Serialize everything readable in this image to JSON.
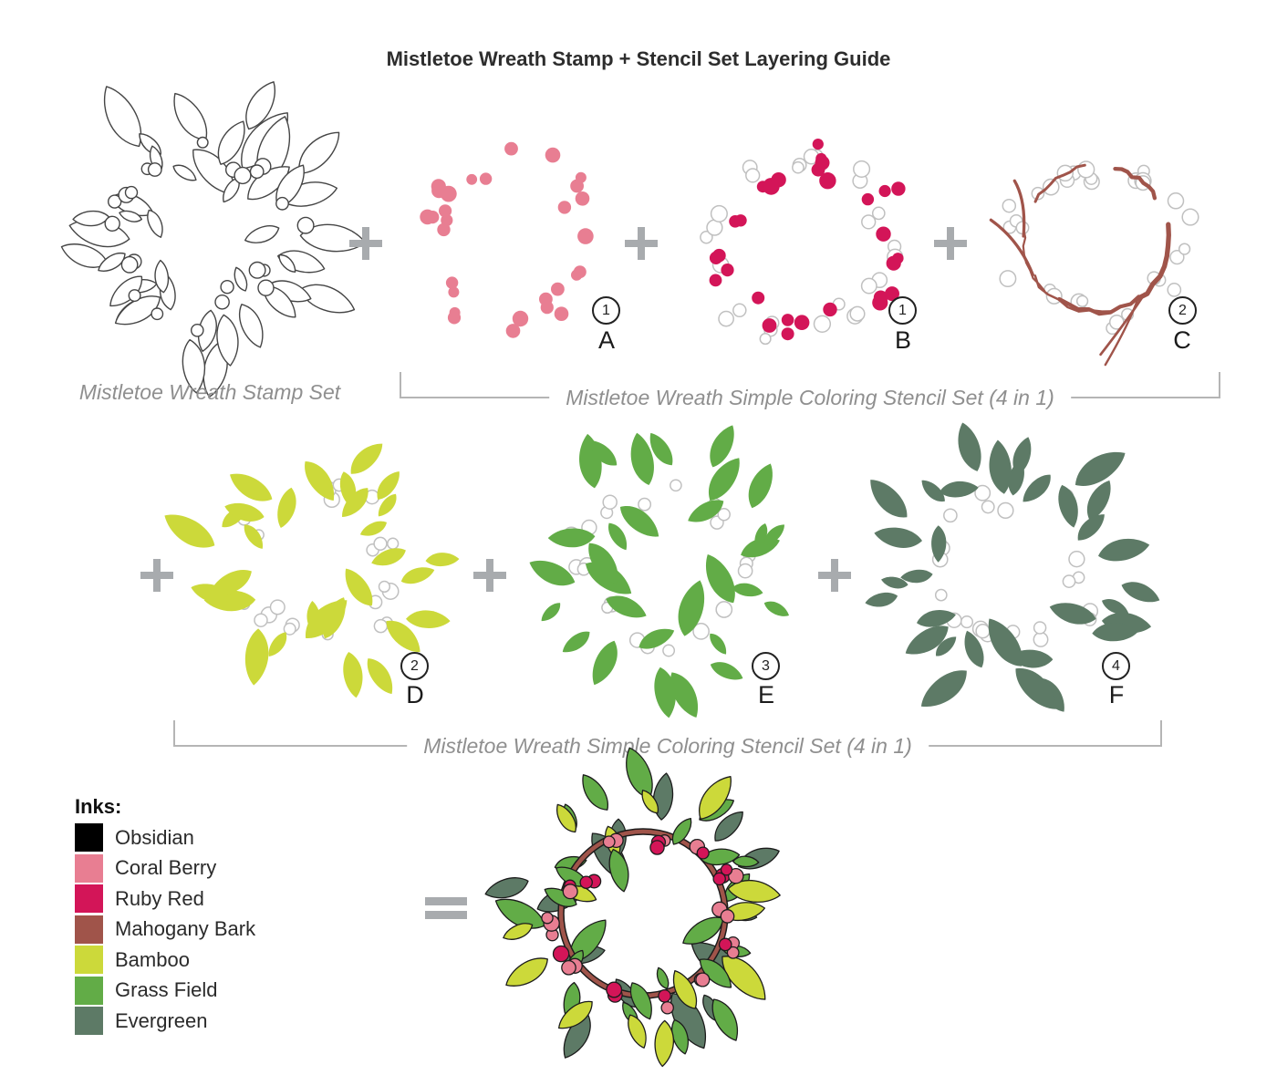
{
  "title": "Mistletoe Wreath Stamp + Stencil Set Layering Guide",
  "captions": {
    "stamp_set": "Mistletoe Wreath Stamp Set",
    "stencil_set_row1": "Mistletoe Wreath Simple Coloring Stencil Set (4 in 1)",
    "stencil_set_row2": "Mistletoe Wreath Simple Coloring Stencil Set (4 in 1)"
  },
  "operators": {
    "plus": "+",
    "equals": "="
  },
  "panels": [
    {
      "id": "stamp",
      "kind": "outline-wreath",
      "letter": "",
      "step": ""
    },
    {
      "id": "A",
      "kind": "dots",
      "letter": "A",
      "step": "1",
      "ink": "Coral Berry"
    },
    {
      "id": "B",
      "kind": "dots-with-ghosts",
      "letter": "B",
      "step": "1",
      "ink": "Ruby Red"
    },
    {
      "id": "C",
      "kind": "vine-with-ghosts",
      "letter": "C",
      "step": "2",
      "ink": "Mahogany Bark"
    },
    {
      "id": "D",
      "kind": "leaves-with-ghosts",
      "letter": "D",
      "step": "2",
      "ink": "Bamboo"
    },
    {
      "id": "E",
      "kind": "leaves-with-ghosts",
      "letter": "E",
      "step": "3",
      "ink": "Grass Field"
    },
    {
      "id": "F",
      "kind": "leaves-with-ghosts",
      "letter": "F",
      "step": "4",
      "ink": "Evergreen"
    }
  ],
  "inks": {
    "heading": "Inks:",
    "items": [
      {
        "name": "Obsidian",
        "color": "#000000"
      },
      {
        "name": "Coral Berry",
        "color": "#e87e92"
      },
      {
        "name": "Ruby Red",
        "color": "#d31558"
      },
      {
        "name": "Mahogany Bark",
        "color": "#a0544a"
      },
      {
        "name": "Bamboo",
        "color": "#ccd93a"
      },
      {
        "name": "Grass Field",
        "color": "#62ac47"
      },
      {
        "name": "Evergreen",
        "color": "#5d7a66"
      }
    ]
  },
  "colors": {
    "ghost_outline": "#c0c0c0",
    "stamp_outline": "#454545",
    "combined_outline": "#1c1c1c",
    "operator_gray": "#a8abae",
    "bracket_gray": "#b5b5b5",
    "caption_gray": "#8f8f8f"
  }
}
